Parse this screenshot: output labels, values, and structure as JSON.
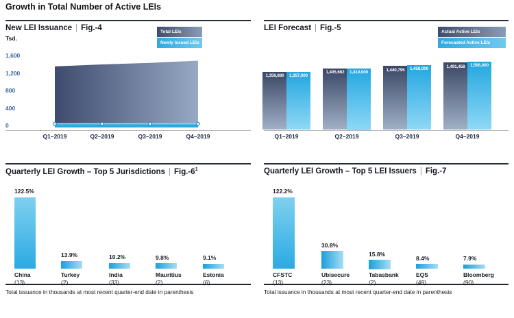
{
  "page": {
    "title": "Growth in Total Number of Active LEIs"
  },
  "shared": {
    "footnote": "Total issuance in thousands at most recent quarter-end date in parenthesis",
    "separator": "|"
  },
  "colors": {
    "accent_blue": "#29abe2",
    "dark_navy_gradient": [
      "#3e4b6e",
      "#97a9c4"
    ],
    "light_blue_gradient": [
      "#22a7e0",
      "#8fd8f6"
    ],
    "tick_label_blue": "#3c669b",
    "axis_gray": "#b5b5b5",
    "rule_dark": "#262b3b"
  },
  "figures": {
    "fig4": {
      "title": "New LEI Issuance",
      "fig_label": "Fig.-4",
      "unit_label": "Tsd.",
      "legend": {
        "total": "Total LEIs",
        "new": "Newly Issued LEIs"
      },
      "y_ticks": [
        "1,600",
        "1,200",
        "800",
        "400",
        "0"
      ],
      "x_labels": [
        "Q1–2019",
        "Q2–2019",
        "Q3–2019",
        "Q4–2019"
      ]
    },
    "fig5": {
      "title": "LEI Forecast",
      "fig_label": "Fig.-5",
      "legend": {
        "actual": "Actual Active LEIs",
        "forecast": "Forecasted Active LEIs"
      },
      "x_labels": [
        "Q1–2019",
        "Q2–2019",
        "Q3–2019",
        "Q4–2019"
      ]
    },
    "fig6": {
      "title": "Quarterly LEI Growth – Top 5 Jurisdictions",
      "fig_label": "Fig.-6",
      "fig_superscript": "1"
    },
    "fig7": {
      "title": "Quarterly LEI Growth – Top 5 LEI Issuers",
      "fig_label": "Fig.-7"
    }
  },
  "chart_data": [
    {
      "id": "fig4",
      "type": "area",
      "title": "New LEI Issuance",
      "ylabel": "Tsd.",
      "ylim": [
        0,
        1600
      ],
      "y_ticks": [
        0,
        400,
        800,
        1200,
        1600
      ],
      "x": [
        "Q1–2019",
        "Q2–2019",
        "Q3–2019",
        "Q4–2019"
      ],
      "legend_position": "top-right",
      "series": [
        {
          "name": "Total LEIs",
          "values": [
            1358.9,
            1405.7,
            1440.8,
            1491.5
          ],
          "estimated_from_axis": true
        },
        {
          "name": "Newly Issued LEIs",
          "values": [
            45,
            45,
            45,
            45
          ],
          "estimated_from_axis": true
        }
      ]
    },
    {
      "id": "fig5",
      "type": "bar",
      "title": "LEI Forecast",
      "categories": [
        "Q1–2019",
        "Q2–2019",
        "Q3–2019",
        "Q4–2019"
      ],
      "legend_position": "top-right",
      "baseline_note": "bars not zero-based; value labels printed inside bar tops",
      "series": [
        {
          "name": "Actual Active LEIs",
          "values": [
            1358880,
            1405662,
            1440795,
            1491458
          ],
          "value_labels": [
            "1,358,880",
            "1,405,662",
            "1,440,795",
            "1,491,458"
          ]
        },
        {
          "name": "Forecasted Active LEIs",
          "values": [
            1357000,
            1410000,
            1458000,
            1506000
          ],
          "value_labels": [
            "1,357,000",
            "1,410,000",
            "1,458,000",
            "1,506,000"
          ]
        }
      ]
    },
    {
      "id": "fig6",
      "type": "bar",
      "title": "Quarterly LEI Growth – Top 5 Jurisdictions",
      "unit": "percent",
      "points": [
        {
          "label": "China",
          "count_label": "(13)",
          "value": 122.5,
          "value_label": "122.5%"
        },
        {
          "label": "Turkey",
          "count_label": "(2)",
          "value": 13.9,
          "value_label": "13.9%"
        },
        {
          "label": "India",
          "count_label": "(33)",
          "value": 10.2,
          "value_label": "10.2%"
        },
        {
          "label": "Mauritius",
          "count_label": "(2)",
          "value": 9.8,
          "value_label": "9.8%"
        },
        {
          "label": "Estonia",
          "count_label": "(6)",
          "value": 9.1,
          "value_label": "9.1%"
        }
      ]
    },
    {
      "id": "fig7",
      "type": "bar",
      "title": "Quarterly LEI Growth – Top 5 LEI Issuers",
      "unit": "percent",
      "points": [
        {
          "label": "CFSTC",
          "count_label": "(13)",
          "value": 122.2,
          "value_label": "122.2%"
        },
        {
          "label": "Ubisecure",
          "count_label": "(23)",
          "value": 30.8,
          "value_label": "30.8%"
        },
        {
          "label": "Tabasbank",
          "count_label": "(2)",
          "value": 15.8,
          "value_label": "15.8%"
        },
        {
          "label": "EQS",
          "count_label": "(49)",
          "value": 8.4,
          "value_label": "8.4%"
        },
        {
          "label": "Bloomberg",
          "count_label": "(90)",
          "value": 7.9,
          "value_label": "7.9%"
        }
      ]
    }
  ]
}
